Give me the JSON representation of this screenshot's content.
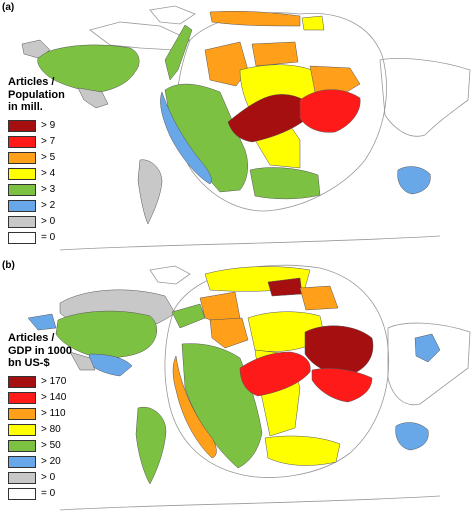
{
  "panels": [
    {
      "label": "(a)",
      "legend_title_lines": [
        "Articles /",
        "Population",
        "in mill."
      ],
      "legend": [
        {
          "label": "> 9",
          "color": "#a50f0f"
        },
        {
          "label": "> 7",
          "color": "#ff1a1a"
        },
        {
          "label": "> 5",
          "color": "#ff9f1a"
        },
        {
          "label": "> 4",
          "color": "#ffff00"
        },
        {
          "label": "> 3",
          "color": "#7dc142"
        },
        {
          "label": "> 2",
          "color": "#69a8e8"
        },
        {
          "label": "> 0",
          "color": "#c8c8c8"
        },
        {
          "label": "= 0",
          "color": "#ffffff"
        }
      ]
    },
    {
      "label": "(b)",
      "legend_title_lines": [
        "Articles /",
        "GDP in 1000",
        "bn US-$"
      ],
      "legend": [
        {
          "label": "> 170",
          "color": "#a50f0f"
        },
        {
          "label": "> 140",
          "color": "#ff1a1a"
        },
        {
          "label": "> 110",
          "color": "#ff9f1a"
        },
        {
          "label": "> 80",
          "color": "#ffff00"
        },
        {
          "label": "> 50",
          "color": "#7dc142"
        },
        {
          "label": "> 20",
          "color": "#69a8e8"
        },
        {
          "label": "> 0",
          "color": "#c8c8c8"
        },
        {
          "label": "= 0",
          "color": "#ffffff"
        }
      ]
    }
  ]
}
